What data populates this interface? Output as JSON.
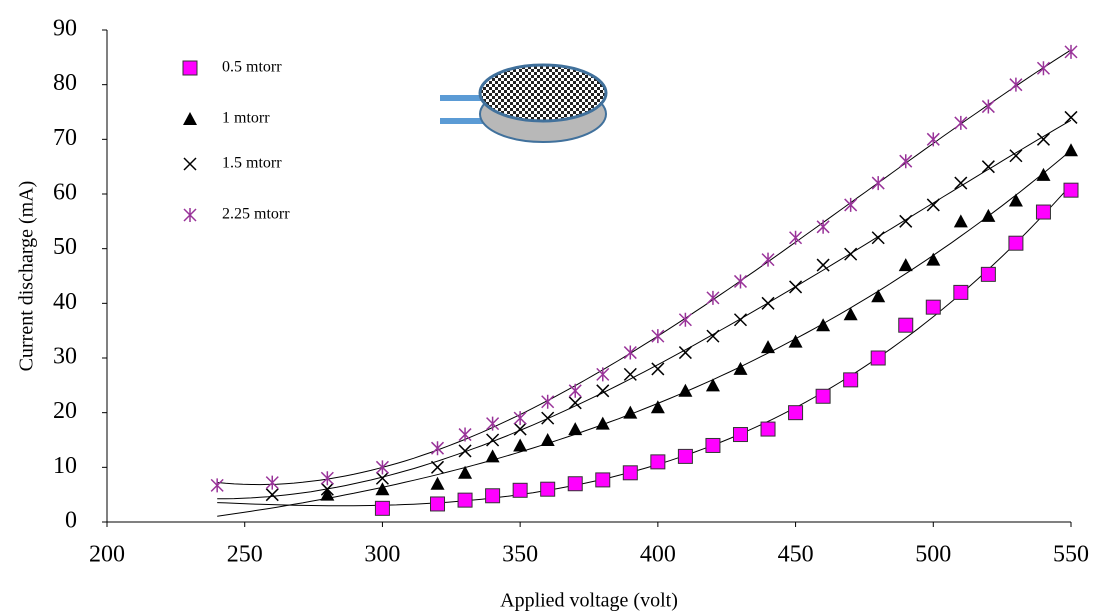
{
  "chart_data": {
    "type": "scatter",
    "x_label": "Applied voltage (volt)",
    "y_label": "Current discharge (mA)",
    "xlim": [
      200,
      550
    ],
    "ylim": [
      0,
      90
    ],
    "xticks": [
      200,
      250,
      300,
      350,
      400,
      450,
      500,
      550
    ],
    "yticks": [
      0,
      10,
      20,
      30,
      40,
      50,
      60,
      70,
      80,
      90
    ],
    "trendline": true,
    "series": [
      {
        "name": "0.5 mtorr",
        "color": "#ff00ff",
        "marker": "square",
        "x": [
          300,
          320,
          330,
          340,
          350,
          360,
          370,
          380,
          390,
          400,
          410,
          420,
          430,
          440,
          450,
          460,
          470,
          480,
          490,
          500,
          510,
          520,
          530,
          540,
          550
        ],
        "values": [
          2.5,
          3.3,
          4,
          4.8,
          5.8,
          6,
          7,
          7.7,
          9,
          11,
          12,
          14,
          16,
          17,
          20,
          23,
          26,
          30,
          36,
          39.3,
          42,
          45.3,
          51,
          56.7,
          60.7
        ]
      },
      {
        "name": "1 mtorr",
        "color": "#000000",
        "marker": "triangle",
        "x": [
          280,
          300,
          320,
          330,
          340,
          350,
          360,
          370,
          380,
          390,
          400,
          410,
          420,
          430,
          440,
          450,
          460,
          470,
          480,
          490,
          500,
          510,
          520,
          530,
          540,
          550
        ],
        "values": [
          5,
          6,
          7,
          9,
          12,
          14,
          15,
          17,
          18,
          20,
          21,
          24,
          25,
          28,
          32,
          33,
          36,
          38,
          41.3,
          47,
          48,
          55,
          56,
          58.8,
          63.5,
          68
        ]
      },
      {
        "name": "1.5 mtorr",
        "color": "#000000",
        "marker": "x",
        "x": [
          260,
          280,
          300,
          320,
          330,
          340,
          350,
          360,
          370,
          380,
          390,
          400,
          410,
          420,
          430,
          440,
          450,
          460,
          470,
          480,
          490,
          500,
          510,
          520,
          530,
          540,
          550
        ],
        "values": [
          5,
          6,
          8,
          10,
          13,
          15,
          17,
          19,
          21.8,
          24,
          27,
          28,
          31,
          34,
          37,
          40,
          43,
          47,
          49,
          52,
          55,
          58,
          62,
          65,
          67,
          70,
          74
        ]
      },
      {
        "name": "2.25 mtorr",
        "color": "#993399",
        "marker": "star",
        "x": [
          240,
          260,
          280,
          300,
          320,
          330,
          340,
          350,
          360,
          370,
          380,
          390,
          400,
          410,
          420,
          430,
          440,
          450,
          460,
          470,
          480,
          490,
          500,
          510,
          520,
          530,
          540,
          550
        ],
        "values": [
          6.7,
          7.2,
          8,
          10,
          13.5,
          16,
          18,
          19,
          22,
          24,
          27,
          31,
          34,
          37,
          41,
          44,
          48,
          52,
          54,
          58,
          62,
          66,
          70,
          73,
          76,
          80,
          83,
          86
        ]
      }
    ]
  }
}
